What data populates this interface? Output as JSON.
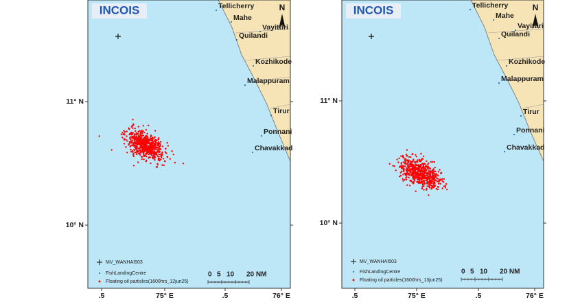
{
  "panels": [
    {
      "logo": "INCOIS",
      "north": "N",
      "places": [
        "Tellicherry",
        "Mahe",
        "Vayittiri",
        "Quilandi",
        "Kozhikode",
        "Malappuram",
        "Tirur",
        "Ponnani",
        "Chavakkad"
      ],
      "lat_labels": [
        "11° N",
        "10° N"
      ],
      "lon_labels": [
        ".5",
        "75° E",
        ".5",
        "76° E"
      ],
      "legend": [
        "MV_WANHAI503",
        "FishLandingCentre",
        "Floating oil particles(1600hrs_12jun25)"
      ],
      "scale": [
        "0",
        "5",
        "10",
        "20 NM"
      ]
    },
    {
      "logo": "INCOIS",
      "north": "N",
      "places": [
        "Tellicherry",
        "Mahe",
        "Vayittiri",
        "Quilandi",
        "Kozhikode",
        "Malappuram",
        "Tirur",
        "Ponnani",
        "Chavakkad"
      ],
      "lat_labels": [
        "11° N",
        "10° N"
      ],
      "lon_labels": [
        ".5",
        "75° E",
        ".5",
        "76° E"
      ],
      "legend": [
        "MV_WANHAI503",
        "FishLandingCentre",
        "Floating oil particles(1600hrs_13jun25)"
      ],
      "scale": [
        "0",
        "5",
        "10",
        "20 NM"
      ]
    }
  ]
}
